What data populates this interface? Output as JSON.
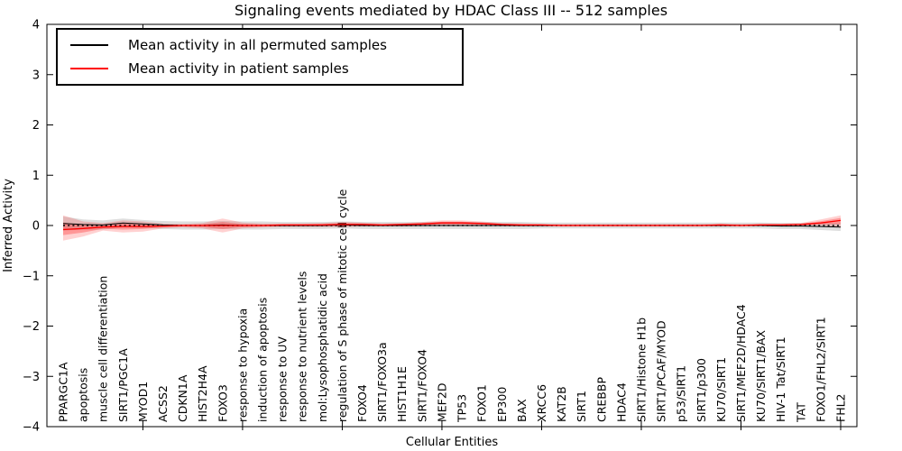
{
  "figure": {
    "title": "Signaling events mediated by HDAC Class III -- 512 samples",
    "xlabel": "Cellular Entities",
    "ylabel": "Inferred Activity"
  },
  "legend": {
    "entries": [
      {
        "label": "Mean activity in all permuted samples",
        "color": "#000000"
      },
      {
        "label": "Mean activity in patient samples",
        "color": "#ff0000"
      }
    ]
  },
  "chart_data": {
    "type": "line",
    "title": "Signaling events mediated by HDAC Class III -- 512 samples",
    "xlabel": "Cellular Entities",
    "ylabel": "Inferred Activity",
    "ylim": [
      -4,
      4
    ],
    "yticks": [
      4,
      3,
      2,
      1,
      0,
      -1,
      -2,
      -3,
      -4
    ],
    "grid": false,
    "legend_position": "upper left",
    "zero_line": {
      "y": 0,
      "style": "dotted",
      "color": "#000000"
    },
    "colors": {
      "permuted_line": "#000000",
      "permuted_band": "rgba(0,0,0,0.13)",
      "patient_line": "#ff0000",
      "patient_band_outer": "rgba(255,0,0,0.18)",
      "patient_band_inner": "rgba(255,0,0,0.28)"
    },
    "categories": [
      "PPARGC1A",
      "apoptosis",
      "muscle cell differentiation",
      "SIRT1/PGC1A",
      "MYOD1",
      "ACSS2",
      "CDKN1A",
      "HIST2H4A",
      "FOXO3",
      "response to hypoxia",
      "induction of apoptosis",
      "response to UV",
      "response to nutrient levels",
      "mol:Lysophosphatidic acid",
      "regulation of S phase of mitotic cell cycle",
      "FOXO4",
      "SIRT1/FOXO3a",
      "HIST1H1E",
      "SIRT1/FOXO4",
      "MEF2D",
      "TP53",
      "FOXO1",
      "EP300",
      "BAX",
      "XRCC6",
      "KAT2B",
      "SIRT1",
      "CREBBP",
      "HDAC4",
      "SIRT1/Histone H1b",
      "SIRT1/PCAF/MYOD",
      "p53/SIRT1",
      "SIRT1/p300",
      "KU70/SIRT1",
      "SIRT1/MEF2D/HDAC4",
      "KU70/SIRT1/BAX",
      "HIV-1 Tat/SIRT1",
      "TAT",
      "FOXO1/FHL2/SIRT1",
      "FHL2"
    ],
    "series": [
      {
        "name": "Mean activity in all permuted samples",
        "color": "#000000",
        "values": [
          0.04,
          0.02,
          0.01,
          0.05,
          0.03,
          0.01,
          0,
          0,
          0.01,
          0,
          0,
          0,
          0,
          0,
          0.01,
          0,
          0,
          0,
          0,
          0,
          0,
          0,
          0,
          0,
          0,
          0,
          0,
          0,
          0,
          0,
          0,
          0,
          0,
          0,
          0,
          0,
          -0.01,
          -0.01,
          -0.02,
          -0.03
        ],
        "band_halfwidth": [
          0.14,
          0.1,
          0.09,
          0.09,
          0.08,
          0.08,
          0.08,
          0.08,
          0.08,
          0.08,
          0.08,
          0.07,
          0.07,
          0.07,
          0.07,
          0.07,
          0.07,
          0.07,
          0.07,
          0.07,
          0.07,
          0.07,
          0.07,
          0.07,
          0.06,
          0.06,
          0.06,
          0.06,
          0.06,
          0.06,
          0.06,
          0.06,
          0.06,
          0.06,
          0.06,
          0.06,
          0.06,
          0.06,
          0.07,
          0.08
        ]
      },
      {
        "name": "Mean activity in patient samples",
        "color": "#ff0000",
        "values": [
          -0.08,
          -0.06,
          -0.03,
          -0.02,
          -0.02,
          -0.01,
          0,
          0,
          0,
          0,
          0,
          0.01,
          0.01,
          0.01,
          0.02,
          0.02,
          0.01,
          0.02,
          0.03,
          0.05,
          0.05,
          0.04,
          0.02,
          0.01,
          0.01,
          0,
          0,
          0,
          0,
          0,
          0,
          0,
          0,
          0.01,
          0,
          0.01,
          0.01,
          0.02,
          0.05,
          0.1
        ],
        "band_upper": [
          0.2,
          0.08,
          0.05,
          0.1,
          0.08,
          0.04,
          0.03,
          0.05,
          0.14,
          0.06,
          0.04,
          0.04,
          0.04,
          0.05,
          0.07,
          0.06,
          0.04,
          0.05,
          0.07,
          0.1,
          0.1,
          0.08,
          0.05,
          0.04,
          0.03,
          0.03,
          0.03,
          0.03,
          0.03,
          0.03,
          0.03,
          0.03,
          0.03,
          0.04,
          0.03,
          0.04,
          0.04,
          0.05,
          0.12,
          0.2
        ],
        "band_lower": [
          -0.3,
          -0.22,
          -0.1,
          -0.14,
          -0.12,
          -0.06,
          -0.04,
          -0.06,
          -0.14,
          -0.06,
          -0.04,
          -0.03,
          -0.03,
          -0.03,
          -0.03,
          -0.02,
          -0.02,
          -0.02,
          -0.01,
          0.0,
          0.0,
          0.0,
          -0.01,
          -0.02,
          -0.02,
          -0.02,
          -0.02,
          -0.02,
          -0.02,
          -0.02,
          -0.02,
          -0.02,
          -0.02,
          -0.02,
          -0.02,
          -0.01,
          -0.01,
          0.0,
          0.0,
          -0.04
        ]
      }
    ]
  }
}
